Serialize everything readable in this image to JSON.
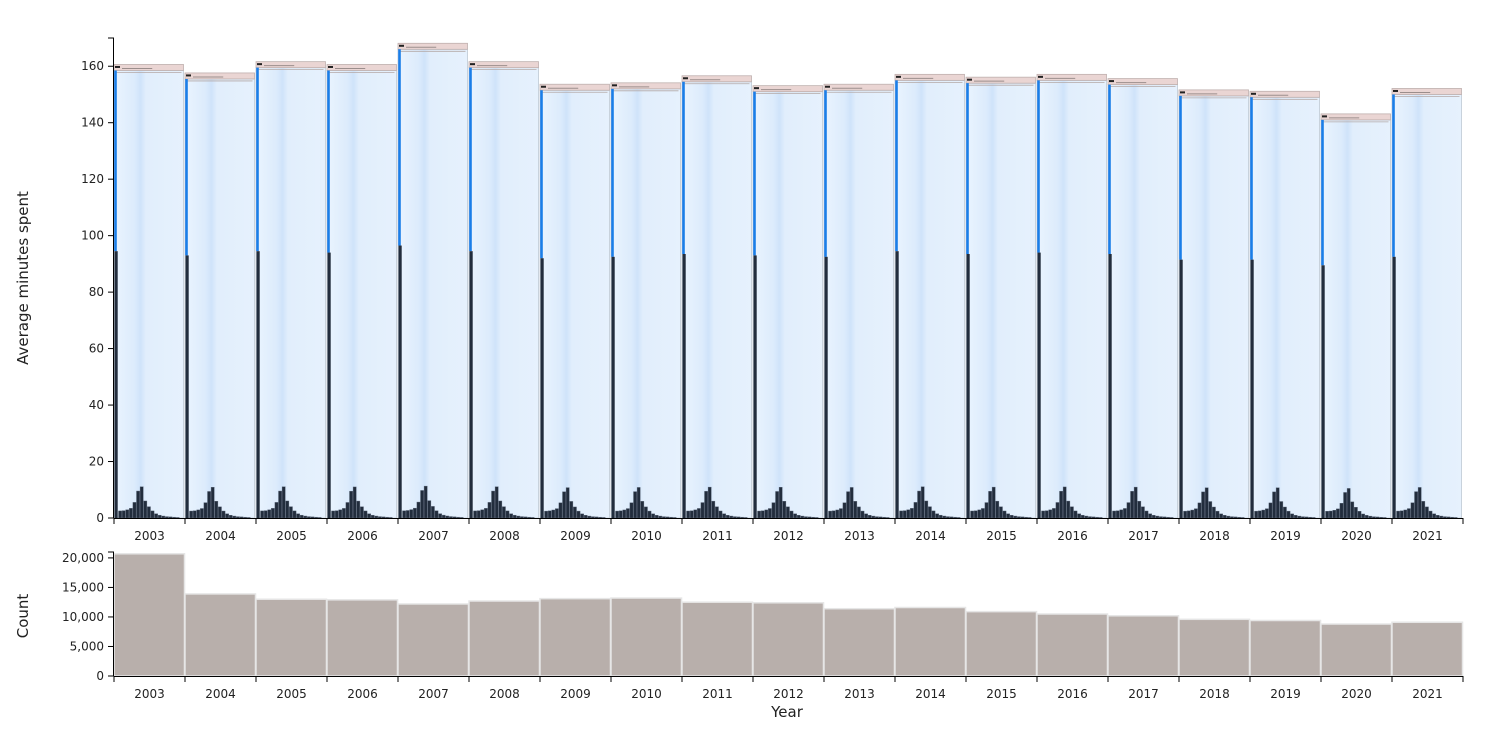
{
  "chart_data": [
    {
      "type": "bar",
      "ylabel": "Average minutes spent",
      "ylim": [
        0,
        170
      ],
      "yticks": [
        0,
        20,
        40,
        60,
        80,
        100,
        120,
        140,
        160
      ],
      "categories": [
        "2003",
        "2004",
        "2005",
        "2006",
        "2007",
        "2008",
        "2009",
        "2010",
        "2011",
        "2012",
        "2013",
        "2014",
        "2015",
        "2016",
        "2017",
        "2018",
        "2019",
        "2020",
        "2021"
      ],
      "values": [
        158.5,
        155.5,
        159.5,
        158.5,
        166,
        159.5,
        151.5,
        152,
        154.5,
        151,
        151.5,
        155,
        154,
        155,
        153.5,
        149.5,
        149,
        141,
        150
      ],
      "first_column_values": [
        94.5,
        93,
        94.5,
        94,
        96.5,
        94.5,
        92,
        92.5,
        93.5,
        93,
        92.5,
        94.5,
        93.5,
        94,
        93.5,
        91.5,
        91.5,
        89.5,
        92.5
      ],
      "small_columns_profile": [
        2.5,
        2.6,
        2.9,
        3.4,
        5.5,
        9.5,
        11,
        6,
        4,
        2.5,
        1.5,
        1.0,
        0.7,
        0.5,
        0.4,
        0.3,
        0.2
      ],
      "colors": {
        "column_fill": "#e3f0fd",
        "column_stroke": "#c8d2dc",
        "accent_line": "#1b7ee8",
        "dark_bars": "#222d3d",
        "cap_fill": "#ead5d3"
      },
      "grid": false
    },
    {
      "type": "bar",
      "xlabel": "Year",
      "ylabel": "Count",
      "ylim": [
        0,
        21000
      ],
      "yticks": [
        0,
        5000,
        10000,
        15000,
        20000
      ],
      "ytick_labels": [
        "0",
        "5,000",
        "10,000",
        "15,000",
        "20,000"
      ],
      "categories": [
        "2003",
        "2004",
        "2005",
        "2006",
        "2007",
        "2008",
        "2009",
        "2010",
        "2011",
        "2012",
        "2013",
        "2014",
        "2015",
        "2016",
        "2017",
        "2018",
        "2019",
        "2020",
        "2021"
      ],
      "values": [
        20700,
        13900,
        13000,
        12900,
        12200,
        12700,
        13100,
        13200,
        12500,
        12400,
        11400,
        11600,
        10900,
        10500,
        10200,
        9600,
        9400,
        8800,
        9100
      ],
      "colors": {
        "bar_fill": "#b8afab",
        "bar_stroke": "#e6e6e6"
      },
      "grid": false
    }
  ]
}
